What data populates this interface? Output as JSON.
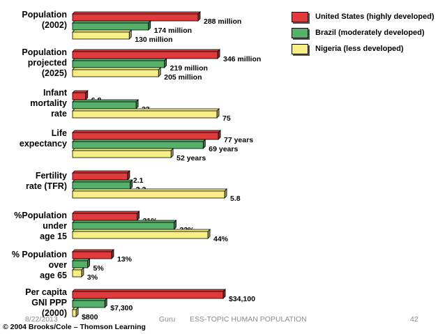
{
  "chart_data": {
    "type": "bar",
    "orientation": "horizontal",
    "style": "3d",
    "categories": [
      [
        "Population",
        "(2002)"
      ],
      [
        "Population",
        "projected",
        "(2025)"
      ],
      [
        "Infant",
        "mortality",
        "rate"
      ],
      [
        "Life",
        "expectancy"
      ],
      [
        "Fertility",
        "rate (TFR)"
      ],
      [
        "%Population",
        "under",
        "age 15"
      ],
      [
        "% Population",
        "over",
        "age 65"
      ],
      [
        "Per capita",
        "GNI PPP",
        "(2000)"
      ]
    ],
    "series": [
      {
        "name": "United States (highly developed)",
        "color": "#e03a3c",
        "values": [
          288,
          346,
          6.8,
          77,
          2.1,
          21,
          13,
          34100
        ],
        "labels": [
          "288 million",
          "346 million",
          "6.8",
          "77 years",
          "2.1",
          "21%",
          "13%",
          "$34,100"
        ]
      },
      {
        "name": "Brazil (moderately developed)",
        "color": "#56b06a",
        "values": [
          174,
          219,
          33,
          69,
          2.2,
          33,
          5,
          7300
        ],
        "labels": [
          "174 million",
          "219 million",
          "33",
          "69 years",
          "2.2",
          "33%",
          "5%",
          "$7,300"
        ]
      },
      {
        "name": "Nigeria (less developed)",
        "color": "#f7ef86",
        "values": [
          130,
          205,
          75,
          52,
          5.8,
          44,
          3,
          800
        ],
        "labels": [
          "130 million",
          "205 million",
          "75",
          "52 years",
          "5.8",
          "44%",
          "3%",
          "$800"
        ]
      }
    ],
    "legend_position": "top-right"
  },
  "footer": {
    "date": "8/22/2013",
    "author": "Guru",
    "topic": "ESS-TOPIC HUMAN POPULATION",
    "page": "42"
  },
  "copyright": "© 2004 Brooks/Cole – Thomson Learning"
}
